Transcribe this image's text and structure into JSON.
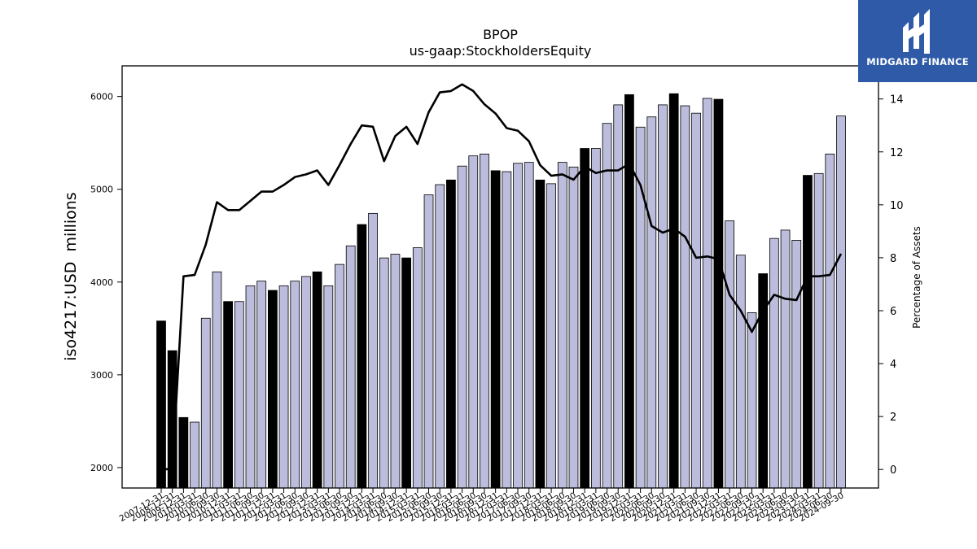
{
  "brand": {
    "name": "MIDGARD FINANCE",
    "color": "#2f5aa8"
  },
  "chart_data": {
    "type": "bar",
    "title": "BPOP",
    "subtitle": "us-gaap:StockholdersEquity",
    "ylabel": "iso4217:USD  millions",
    "y2label": "Percentage of Assets",
    "ylim": [
      1780,
      6330
    ],
    "y2lim": [
      -0.7,
      15.25
    ],
    "yticks": [
      2000,
      3000,
      4000,
      5000,
      6000
    ],
    "y2ticks": [
      0,
      2,
      4,
      6,
      8,
      10,
      12,
      14
    ],
    "xtick_labels": [
      "2007-12-31",
      "2008-12-31",
      "2009-12-31",
      "2010-03-31",
      "2010-06-30",
      "2010-09-30",
      "2010-12-31",
      "2011-03-31",
      "2011-06-30",
      "2011-09-30",
      "2011-12-31",
      "2012-03-31",
      "2012-06-30",
      "2012-09-30",
      "2012-12-31",
      "2013-03-31",
      "2013-06-30",
      "2013-09-30",
      "2013-12-31",
      "2014-03-31",
      "2014-06-30",
      "2014-09-30",
      "2014-12-31",
      "2015-03-31",
      "2015-06-30",
      "2015-09-30",
      "2015-12-31",
      "2016-03-31",
      "2016-06-30",
      "2016-09-30",
      "2016-12-31",
      "2017-03-31",
      "2017-06-30",
      "2017-09-30",
      "2017-12-31",
      "2018-03-31",
      "2018-06-30",
      "2018-09-30",
      "2018-12-31",
      "2019-03-31",
      "2019-06-30",
      "2019-09-30",
      "2019-12-31",
      "2020-03-31",
      "2020-06-30",
      "2020-09-30",
      "2020-12-31",
      "2021-03-31",
      "2021-06-30",
      "2021-09-30",
      "2021-12-31",
      "2022-03-31",
      "2022-06-30",
      "2022-09-30",
      "2022-12-31",
      "2023-03-31",
      "2023-06-30",
      "2023-09-30",
      "2023-12-31",
      "2024-03-31",
      "2024-06-30",
      "2024-09-30"
    ],
    "series": [
      {
        "type": "bar",
        "axis": "left",
        "values": [
          3580,
          3260,
          2540,
          2490,
          3610,
          4110,
          3790,
          3790,
          3960,
          4010,
          3910,
          3960,
          4010,
          4060,
          4110,
          3960,
          4190,
          4390,
          4620,
          4740,
          4260,
          4300,
          4260,
          4370,
          4940,
          5050,
          5100,
          5250,
          5360,
          5380,
          5200,
          5190,
          5280,
          5290,
          5100,
          5060,
          5290,
          5240,
          5440,
          5440,
          5710,
          5910,
          6020,
          5670,
          5780,
          5910,
          6030,
          5900,
          5820,
          5980,
          5970,
          4660,
          4290,
          3670,
          4090,
          4470,
          4560,
          4450,
          5150,
          5170,
          5380,
          5790
        ],
        "colors": {
          "year_end": "#000000",
          "quarter": "#bcbcdc"
        }
      },
      {
        "type": "line",
        "axis": "right",
        "color": "#000000",
        "values": [
          0.0,
          0.02,
          7.3,
          7.35,
          8.5,
          10.1,
          9.8,
          9.8,
          10.15,
          10.5,
          10.5,
          10.75,
          11.05,
          11.15,
          11.3,
          10.75,
          11.5,
          12.3,
          13.0,
          12.95,
          11.65,
          12.6,
          12.95,
          12.3,
          13.5,
          14.25,
          14.3,
          14.55,
          14.3,
          13.8,
          13.45,
          12.9,
          12.8,
          12.4,
          11.5,
          11.1,
          11.15,
          10.95,
          11.45,
          11.2,
          11.3,
          11.3,
          11.55,
          10.75,
          9.2,
          8.95,
          9.1,
          8.8,
          8.0,
          8.05,
          7.95,
          6.6,
          6.0,
          5.2,
          6.0,
          6.6,
          6.45,
          6.4,
          7.3,
          7.3,
          7.35,
          8.15
        ]
      }
    ],
    "grid": false,
    "legend": "none"
  }
}
